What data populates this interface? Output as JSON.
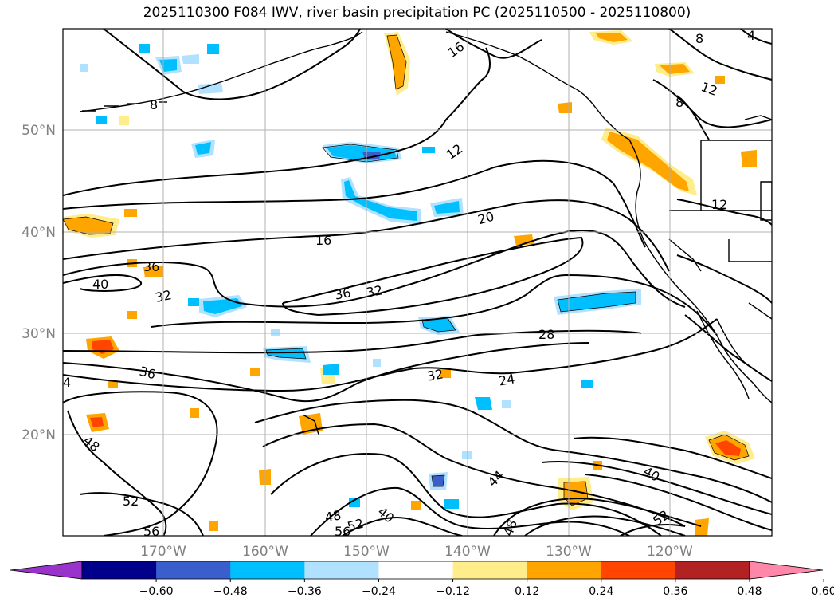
{
  "title": "2025110300 F084 IWV, river basin precipitation PC (2025110500 - 2025110800)",
  "lat_labels": [
    "50°N",
    "40°N",
    "30°N",
    "20°N"
  ],
  "lon_labels": [
    "170°W",
    "160°W",
    "150°W",
    "140°W",
    "130°W",
    "120°W"
  ],
  "colorbar": {
    "tick_labels": [
      "−0.60",
      "−0.48",
      "−0.36",
      "−0.24",
      "−0.12",
      "0.12",
      "0.24",
      "0.36",
      "0.48",
      "0.60"
    ],
    "colors": [
      "#9933cc",
      "#00008b",
      "#3a5fcd",
      "#00bfff",
      "#b0e2ff",
      "#ffffff",
      "#ffec8b",
      "#ffa500",
      "#ff4500",
      "#b22222",
      "#ff88aa"
    ]
  },
  "contour_labels": [
    "16",
    "8",
    "4",
    "12",
    "8",
    "8",
    "12",
    "12",
    "20",
    "16",
    "36",
    "40",
    "32",
    "36",
    "32",
    "28",
    "36",
    "32",
    "24",
    "4",
    "48",
    "44",
    "40",
    "52",
    "52",
    "48",
    "40",
    "56",
    "56",
    "52",
    "48"
  ]
}
